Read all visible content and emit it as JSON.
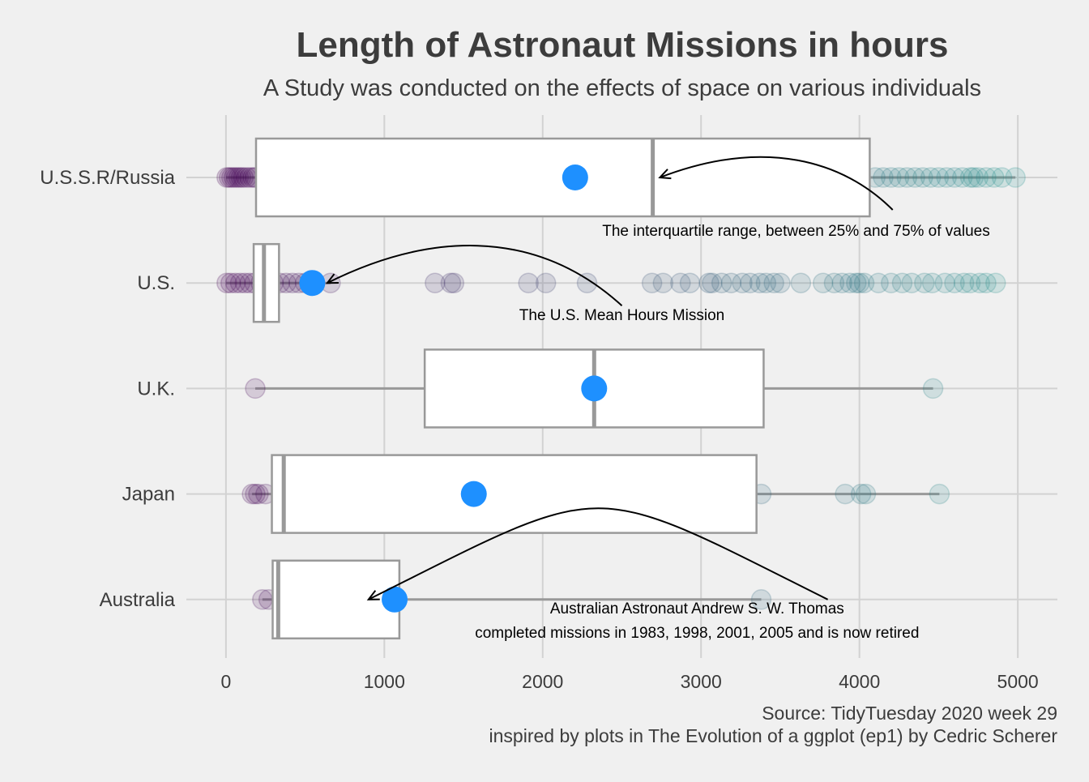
{
  "chart_data": {
    "type": "boxplot",
    "title": "Length of Astronaut Missions in hours",
    "subtitle": "A Study was conducted on the effects of space on various individuals",
    "caption_lines": [
      "Source: TidyTuesday 2020 week 29",
      "inspired by plots in The Evolution of a ggplot (ep1) by Cedric Scherer"
    ],
    "x_axis": {
      "ticks": [
        0,
        1000,
        2000,
        3000,
        4000,
        5000
      ],
      "xlim": [
        -250,
        5250
      ],
      "grid": true
    },
    "categories": [
      "U.S.S.R/Russia",
      "U.S.",
      "U.K.",
      "Japan",
      "Australia"
    ],
    "colors": {
      "background": "#f0f0f0",
      "box_stroke": "#999999",
      "mean_point": "#1e90ff",
      "grid": "#d2d2d2",
      "text": "#3c3c3c",
      "low_point": "#440154",
      "high_point": "#21908c"
    },
    "series": [
      {
        "name": "U.S.S.R/Russia",
        "q1": 190,
        "median": 2695,
        "q3": 4065,
        "mean": 2205,
        "whisker_low": 0,
        "whisker_high": 4985,
        "points": [
          5,
          20,
          35,
          50,
          65,
          80,
          95,
          110,
          130,
          150,
          170,
          185,
          4100,
          4150,
          4200,
          4250,
          4300,
          4350,
          4400,
          4450,
          4500,
          4550,
          4600,
          4650,
          4700,
          4720,
          4750,
          4800,
          4850,
          4900,
          4985
        ]
      },
      {
        "name": "U.S.",
        "q1": 175,
        "median": 240,
        "q3": 335,
        "mean": 545,
        "whisker_low": 0,
        "whisker_high": 660,
        "points": [
          5,
          30,
          60,
          90,
          120,
          150,
          180,
          220,
          260,
          300,
          340,
          380,
          420,
          460,
          500,
          660,
          1320,
          1420,
          1440,
          1910,
          2020,
          2280,
          2690,
          2760,
          2870,
          2930,
          3050,
          3070,
          3130,
          3190,
          3260,
          3310,
          3370,
          3410,
          3460,
          3500,
          3630,
          3770,
          3840,
          3890,
          3940,
          3980,
          4000,
          4030,
          4120,
          4200,
          4270,
          4330,
          4410,
          4460,
          4540,
          4600,
          4660,
          4700,
          4760,
          4800,
          4860
        ]
      },
      {
        "name": "U.K.",
        "q1": 1255,
        "median": 2325,
        "q3": 3395,
        "mean": 2325,
        "whisker_low": 185,
        "whisker_high": 4465,
        "points": [
          185,
          4465
        ]
      },
      {
        "name": "Japan",
        "q1": 290,
        "median": 365,
        "q3": 3350,
        "mean": 1565,
        "whisker_low": 165,
        "whisker_high": 4505,
        "points": [
          165,
          185,
          205,
          250,
          3380,
          3910,
          4010,
          4040,
          4505
        ]
      },
      {
        "name": "Australia",
        "q1": 295,
        "median": 330,
        "q3": 1095,
        "mean": 1065,
        "whisker_low": 230,
        "whisker_high": 3380,
        "points": [
          230,
          270,
          3380
        ]
      }
    ],
    "annotations": [
      {
        "lines": [
          "The interquartile range, between 25% and 75% of values"
        ],
        "x": 3600,
        "category": "U.S.S.R/Russia"
      },
      {
        "lines": [
          "The U.S. Mean Hours Mission"
        ],
        "x": 2500,
        "category": "U.S."
      },
      {
        "lines": [
          "Australian Astronaut Andrew S. W. Thomas",
          "completed missions in 1983, 1998, 2001, 2005 and is now retired"
        ],
        "x": 3000,
        "category": "Australia"
      }
    ]
  }
}
